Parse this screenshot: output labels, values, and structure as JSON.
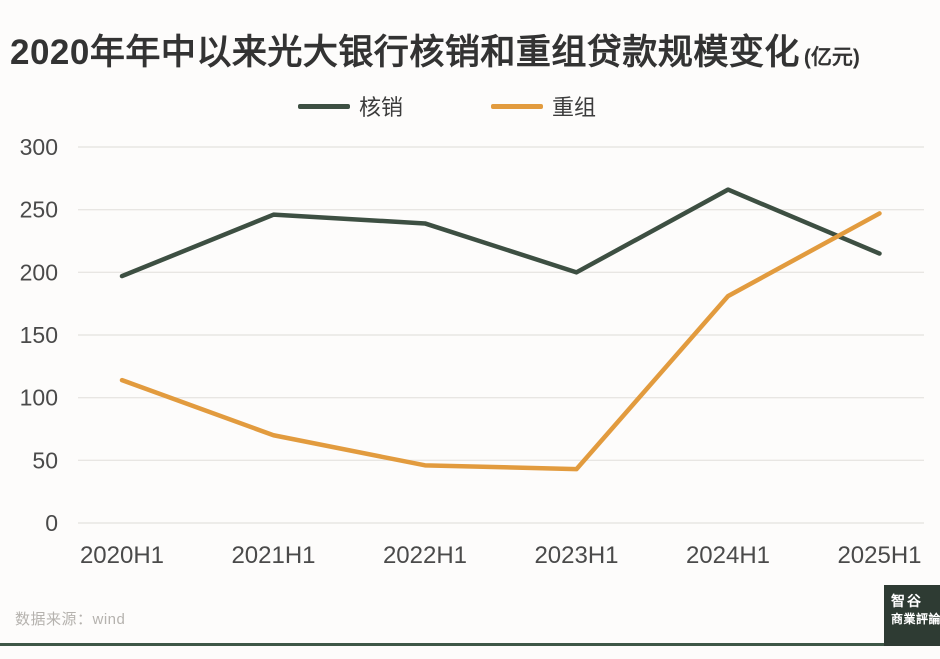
{
  "chart_data": {
    "type": "line",
    "title": "2020年年中以来光大银行核销和重组贷款规模变化",
    "unit_label": "(亿元)",
    "categories": [
      "2020H1",
      "2021H1",
      "2022H1",
      "2023H1",
      "2024H1",
      "2025H1"
    ],
    "series": [
      {
        "name": "核销",
        "color": "#3d4f42",
        "values": [
          197,
          246,
          239,
          200,
          266,
          215
        ]
      },
      {
        "name": "重组",
        "color": "#e29b3e",
        "values": [
          114,
          70,
          46,
          43,
          181,
          247
        ]
      }
    ],
    "ylim": [
      0,
      300
    ],
    "ytick_step": 50,
    "grid": true,
    "legend_position": "top"
  },
  "footer": {
    "source": "数据来源：wind",
    "logo_line1": "智谷",
    "logo_line2": "商業評論"
  },
  "colors": {
    "background": "#fdfcfb",
    "title_text": "#333333",
    "grid": "#e8e6e3",
    "axis_text": "#4a4a4a",
    "source_text": "#b5b2ae",
    "bottom_rule": "#3e5747",
    "logo_bg": "#2e3b33"
  }
}
